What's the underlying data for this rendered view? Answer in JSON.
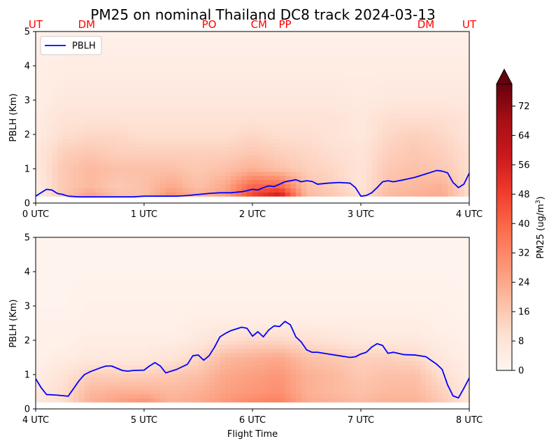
{
  "title": "PM25 on nominal Thailand DC8 track 2024-03-13",
  "colors": {
    "pblh_line": "#0000ff",
    "site_label": "#ff0000",
    "colormap": [
      "#fff5f0",
      "#fee0d2",
      "#fcbba1",
      "#fc9272",
      "#fb6a4a",
      "#ef3b2c",
      "#cb181d",
      "#a50f15",
      "#67000d"
    ]
  },
  "chart_data": [
    {
      "type": "heatmap",
      "name": "upper-panel",
      "ylabel": "PBLH (Km)",
      "xlabel": "",
      "xlim": [
        0,
        4
      ],
      "ylim": [
        0,
        5
      ],
      "xticks": [
        "0 UTC",
        "1 UTC",
        "2 UTC",
        "3 UTC",
        "4 UTC"
      ],
      "yticks": [
        "0",
        "1",
        "2",
        "3",
        "4",
        "5"
      ],
      "site_labels": [
        {
          "label": "UT",
          "x": 0.0
        },
        {
          "label": "DM",
          "x": 0.47
        },
        {
          "label": "PO",
          "x": 1.6
        },
        {
          "label": "CM",
          "x": 2.06
        },
        {
          "label": "PP",
          "x": 2.3
        },
        {
          "label": "DM",
          "x": 3.6
        },
        {
          "label": "UT",
          "x": 4.0
        }
      ],
      "legend": {
        "entries": [
          "PBLH"
        ],
        "placement": "top-left"
      },
      "series": [
        {
          "name": "PBLH",
          "x": [
            0.0,
            0.05,
            0.1,
            0.15,
            0.2,
            0.25,
            0.3,
            0.4,
            0.5,
            0.6,
            0.7,
            0.8,
            0.9,
            1.0,
            1.1,
            1.2,
            1.3,
            1.4,
            1.5,
            1.6,
            1.7,
            1.8,
            1.9,
            1.95,
            2.0,
            2.05,
            2.1,
            2.15,
            2.2,
            2.25,
            2.3,
            2.4,
            2.45,
            2.5,
            2.55,
            2.6,
            2.7,
            2.8,
            2.9,
            2.95,
            3.0,
            3.05,
            3.1,
            3.15,
            3.2,
            3.25,
            3.3,
            3.4,
            3.5,
            3.6,
            3.7,
            3.75,
            3.8,
            3.85,
            3.9,
            3.95,
            4.0
          ],
          "y": [
            0.2,
            0.3,
            0.4,
            0.38,
            0.28,
            0.25,
            0.2,
            0.18,
            0.18,
            0.18,
            0.18,
            0.18,
            0.18,
            0.2,
            0.2,
            0.2,
            0.2,
            0.22,
            0.25,
            0.28,
            0.3,
            0.3,
            0.33,
            0.36,
            0.4,
            0.38,
            0.45,
            0.5,
            0.48,
            0.55,
            0.62,
            0.68,
            0.62,
            0.65,
            0.63,
            0.55,
            0.58,
            0.6,
            0.58,
            0.45,
            0.2,
            0.22,
            0.3,
            0.45,
            0.62,
            0.65,
            0.62,
            0.68,
            0.75,
            0.85,
            0.95,
            0.93,
            0.88,
            0.6,
            0.45,
            0.55,
            0.87
          ]
        }
      ],
      "field": {
        "x_nodes": [
          0.0,
          0.25,
          0.5,
          0.75,
          1.0,
          1.25,
          1.5,
          1.75,
          2.0,
          2.25,
          2.5,
          2.75,
          3.0,
          3.25,
          3.5,
          3.75,
          4.0
        ],
        "y_nodes": [
          0.2,
          0.5,
          1.0,
          1.5,
          2.0,
          2.5,
          3.0,
          4.0,
          5.0
        ],
        "values": [
          [
            4,
            16,
            26,
            18,
            18,
            30,
            22,
            26,
            48,
            60,
            20,
            16,
            10,
            20,
            22,
            24,
            10
          ],
          [
            4,
            16,
            20,
            16,
            18,
            24,
            18,
            24,
            40,
            40,
            18,
            14,
            8,
            18,
            20,
            22,
            10
          ],
          [
            6,
            16,
            20,
            18,
            18,
            18,
            16,
            18,
            22,
            18,
            14,
            12,
            8,
            16,
            18,
            16,
            10
          ],
          [
            6,
            14,
            16,
            14,
            14,
            14,
            14,
            14,
            16,
            14,
            12,
            10,
            8,
            14,
            16,
            14,
            10
          ],
          [
            4,
            10,
            12,
            12,
            10,
            10,
            10,
            10,
            12,
            10,
            10,
            8,
            6,
            12,
            14,
            12,
            8
          ],
          [
            4,
            8,
            8,
            8,
            8,
            8,
            8,
            8,
            8,
            8,
            8,
            8,
            6,
            10,
            10,
            10,
            8
          ],
          [
            3,
            6,
            6,
            6,
            6,
            6,
            6,
            6,
            6,
            6,
            6,
            6,
            5,
            6,
            6,
            6,
            6
          ],
          [
            3,
            4,
            4,
            4,
            4,
            4,
            4,
            4,
            4,
            4,
            4,
            4,
            4,
            4,
            4,
            4,
            4
          ],
          [
            2,
            2,
            2,
            2,
            2,
            2,
            2,
            2,
            2,
            2,
            2,
            2,
            2,
            2,
            2,
            2,
            2
          ]
        ]
      }
    },
    {
      "type": "heatmap",
      "name": "lower-panel",
      "ylabel": "PBLH (Km)",
      "xlabel": "Flight Time",
      "xlim": [
        4,
        8
      ],
      "ylim": [
        0,
        5
      ],
      "xticks": [
        "4 UTC",
        "5 UTC",
        "6 UTC",
        "7 UTC",
        "8 UTC"
      ],
      "yticks": [
        "0",
        "1",
        "2",
        "3",
        "4",
        "5"
      ],
      "series": [
        {
          "name": "PBLH",
          "x": [
            4.0,
            4.05,
            4.1,
            4.2,
            4.3,
            4.4,
            4.45,
            4.5,
            4.6,
            4.65,
            4.7,
            4.8,
            4.85,
            4.9,
            5.0,
            5.05,
            5.1,
            5.15,
            5.2,
            5.3,
            5.4,
            5.45,
            5.5,
            5.55,
            5.6,
            5.65,
            5.7,
            5.75,
            5.8,
            5.9,
            5.95,
            6.0,
            6.05,
            6.1,
            6.15,
            6.2,
            6.25,
            6.3,
            6.35,
            6.4,
            6.45,
            6.5,
            6.55,
            6.6,
            6.7,
            6.8,
            6.9,
            6.95,
            7.0,
            7.05,
            7.1,
            7.15,
            7.2,
            7.25,
            7.3,
            7.4,
            7.5,
            7.6,
            7.7,
            7.75,
            7.8,
            7.85,
            7.9,
            7.95,
            8.0
          ],
          "y": [
            0.88,
            0.62,
            0.42,
            0.4,
            0.37,
            0.82,
            1.0,
            1.08,
            1.2,
            1.25,
            1.25,
            1.12,
            1.1,
            1.12,
            1.13,
            1.25,
            1.35,
            1.25,
            1.05,
            1.15,
            1.3,
            1.55,
            1.57,
            1.42,
            1.55,
            1.8,
            2.1,
            2.2,
            2.28,
            2.38,
            2.35,
            2.12,
            2.25,
            2.1,
            2.3,
            2.42,
            2.4,
            2.55,
            2.45,
            2.1,
            1.95,
            1.72,
            1.65,
            1.65,
            1.6,
            1.55,
            1.5,
            1.52,
            1.6,
            1.65,
            1.8,
            1.9,
            1.85,
            1.62,
            1.65,
            1.58,
            1.57,
            1.52,
            1.3,
            1.15,
            0.7,
            0.38,
            0.32,
            0.6,
            0.9
          ]
        }
      ],
      "field": {
        "x_nodes": [
          4.0,
          4.25,
          4.5,
          4.75,
          5.0,
          5.25,
          5.5,
          5.75,
          6.0,
          6.25,
          6.5,
          6.75,
          7.0,
          7.25,
          7.5,
          7.75,
          8.0
        ],
        "y_nodes": [
          0.2,
          0.5,
          1.0,
          1.5,
          2.0,
          2.5,
          3.0,
          4.0,
          5.0
        ],
        "values": [
          [
            6,
            10,
            22,
            26,
            30,
            22,
            24,
            28,
            32,
            34,
            24,
            22,
            20,
            22,
            22,
            16,
            8
          ],
          [
            6,
            10,
            20,
            22,
            22,
            20,
            22,
            26,
            28,
            30,
            22,
            20,
            18,
            20,
            20,
            14,
            6
          ],
          [
            4,
            8,
            14,
            14,
            14,
            16,
            18,
            24,
            26,
            28,
            22,
            20,
            16,
            18,
            18,
            10,
            4
          ],
          [
            2,
            4,
            6,
            6,
            6,
            8,
            12,
            20,
            22,
            24,
            18,
            16,
            14,
            14,
            12,
            6,
            3
          ],
          [
            2,
            2,
            4,
            4,
            4,
            4,
            6,
            10,
            12,
            12,
            10,
            8,
            6,
            6,
            6,
            4,
            2
          ],
          [
            2,
            2,
            2,
            2,
            2,
            2,
            4,
            4,
            4,
            4,
            4,
            4,
            4,
            4,
            4,
            2,
            2
          ],
          [
            1,
            1,
            2,
            2,
            2,
            2,
            2,
            2,
            2,
            2,
            2,
            2,
            2,
            2,
            2,
            2,
            1
          ],
          [
            1,
            1,
            1,
            1,
            1,
            1,
            1,
            1,
            1,
            1,
            1,
            1,
            1,
            1,
            1,
            1,
            1
          ],
          [
            1,
            1,
            1,
            1,
            1,
            1,
            1,
            1,
            1,
            1,
            1,
            1,
            1,
            1,
            1,
            1,
            1
          ]
        ]
      }
    }
  ],
  "colorbar": {
    "label_main": "PM25 (ug/m",
    "label_sup": "3",
    "label_end": ")",
    "min": 0,
    "max": 78,
    "ticks": [
      0,
      8,
      16,
      24,
      32,
      40,
      48,
      56,
      64,
      72
    ],
    "extend": "max"
  }
}
